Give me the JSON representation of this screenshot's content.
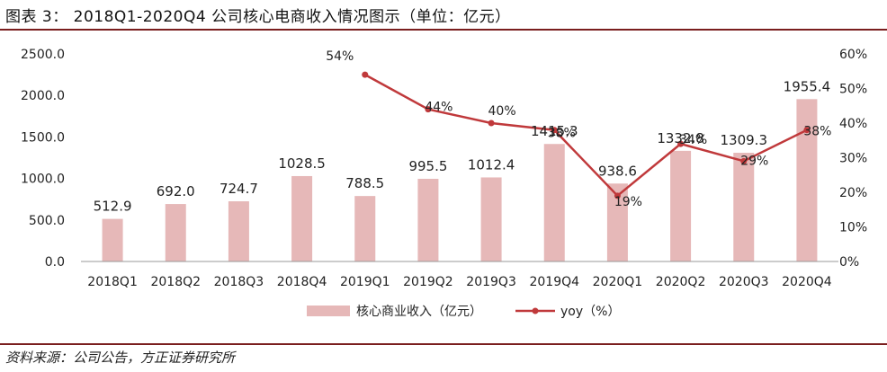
{
  "title": "图表 3： 2018Q1-2020Q4 公司核心电商收入情况图示（单位：亿元）",
  "source": "资料来源：公司公告，方正证券研究所",
  "colors": {
    "bar": "#e6b8b8",
    "line": "#c0393b",
    "rule": "#7a1e1e"
  },
  "chart_data": {
    "type": "bar",
    "categories": [
      "2018Q1",
      "2018Q2",
      "2018Q3",
      "2018Q4",
      "2019Q1",
      "2019Q2",
      "2019Q3",
      "2019Q4",
      "2020Q1",
      "2020Q2",
      "2020Q3",
      "2020Q4"
    ],
    "series": [
      {
        "name": "核心商业收入（亿元）",
        "type": "bar",
        "axis": "left",
        "values": [
          512.9,
          692.0,
          724.7,
          1028.5,
          788.5,
          995.5,
          1012.4,
          1415.3,
          938.6,
          1332.8,
          1309.3,
          1955.4
        ],
        "labels": [
          "512.9",
          "692.0",
          "724.7",
          "1028.5",
          "788.5",
          "995.5",
          "1012.4",
          "1415.3",
          "938.6",
          "1332.8",
          "1309.3",
          "1955.4"
        ]
      },
      {
        "name": "yoy（%）",
        "type": "line",
        "axis": "right",
        "values": [
          null,
          null,
          null,
          null,
          54,
          44,
          40,
          38,
          19,
          34,
          29,
          38
        ],
        "labels": [
          "",
          "",
          "",
          "",
          "54%",
          "44%",
          "40%",
          "38%",
          "19%",
          "34%",
          "29%",
          "38%"
        ]
      }
    ],
    "y_left": {
      "min": 0,
      "max": 2500,
      "ticks": [
        "0.0",
        "500.0",
        "1000.0",
        "1500.0",
        "2000.0",
        "2500.0"
      ]
    },
    "y_right": {
      "min": 0,
      "max": 60,
      "ticks": [
        "0%",
        "10%",
        "20%",
        "30%",
        "40%",
        "50%",
        "60%"
      ]
    },
    "legend_position": "bottom"
  }
}
